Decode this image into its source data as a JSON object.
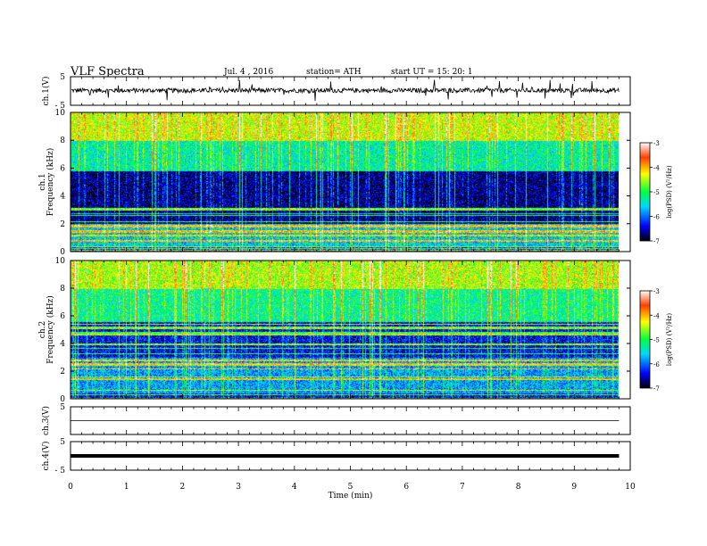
{
  "header": {
    "title": "VLF  Spectra",
    "date": "Jul.  4   , 2016",
    "station": "station= ATH",
    "start": "start  UT  =    15: 20: 1"
  },
  "chart_data": [
    {
      "type": "line",
      "name": "ch1-waveform",
      "ylabel": "ch.1(V)",
      "ylim": [
        -5,
        5
      ],
      "yticks": [
        5,
        -5
      ],
      "xlim": [
        0,
        10
      ],
      "description_values": {
        "baseline_v": 0.2,
        "noise_amplitude_v": 0.8,
        "typical_spike_v": 2.0
      }
    },
    {
      "type": "heatmap",
      "name": "ch1-spectrogram",
      "ylabel": "ch.1\nFrequency  (kHz)",
      "ylim": [
        0,
        10
      ],
      "yticks": [
        0,
        2,
        4,
        6,
        8,
        10
      ],
      "xlim": [
        0,
        9.8
      ],
      "colorbar": {
        "label": "log(PSD) (V²/Hz)",
        "range": [
          -7,
          -3
        ],
        "ticks": [
          -3,
          -4,
          -5,
          -6,
          -7
        ]
      },
      "bands": [
        {
          "f_from": 0,
          "f_to": 2,
          "logpsd": -5.6
        },
        {
          "f_from": 2,
          "f_to": 5.8,
          "logpsd": -6.7
        },
        {
          "f_from": 5.8,
          "f_to": 8,
          "logpsd": -5.3
        },
        {
          "f_from": 8,
          "f_to": 10,
          "logpsd": -4.4
        }
      ]
    },
    {
      "type": "heatmap",
      "name": "ch2-spectrogram",
      "ylabel": "ch.2\nFrequency  (kHz)",
      "ylim": [
        0,
        10
      ],
      "yticks": [
        0,
        2,
        4,
        6,
        8,
        10
      ],
      "xlim": [
        0,
        9.8
      ],
      "colorbar": {
        "label": "log(PSD) (V²/Hz)",
        "range": [
          -7,
          -3
        ],
        "ticks": [
          -3,
          -4,
          -5,
          -6,
          -7
        ]
      },
      "bands": [
        {
          "f_from": 0,
          "f_to": 3,
          "logpsd": -5.8
        },
        {
          "f_from": 3,
          "f_to": 5.6,
          "logpsd": -6.4
        },
        {
          "f_from": 5.6,
          "f_to": 8,
          "logpsd": -5.2
        },
        {
          "f_from": 8,
          "f_to": 10,
          "logpsd": -4.5
        }
      ]
    },
    {
      "type": "line",
      "name": "ch3-waveform",
      "ylabel": "ch.3(V)",
      "ylim": [
        -5,
        5
      ],
      "yticks": [
        5
      ],
      "xlim": [
        0,
        9.8
      ],
      "value_v": 0
    },
    {
      "type": "line",
      "name": "ch4-waveform",
      "ylabel": "ch.4(V)",
      "ylim": [
        -5,
        5
      ],
      "yticks": [
        5,
        -5
      ],
      "xlim": [
        0,
        9.8
      ],
      "value_v": 0
    }
  ],
  "xaxis": {
    "label": "Time  (min)",
    "range": [
      0,
      10
    ],
    "ticks": [
      0,
      1,
      2,
      3,
      4,
      5,
      6,
      7,
      8,
      9,
      10
    ]
  },
  "colors": {
    "axis": "#000000",
    "colormap": [
      "#000000",
      "#0000ff",
      "#00d8ff",
      "#00ff40",
      "#ffff00",
      "#ff6000",
      "#ffffff"
    ]
  }
}
